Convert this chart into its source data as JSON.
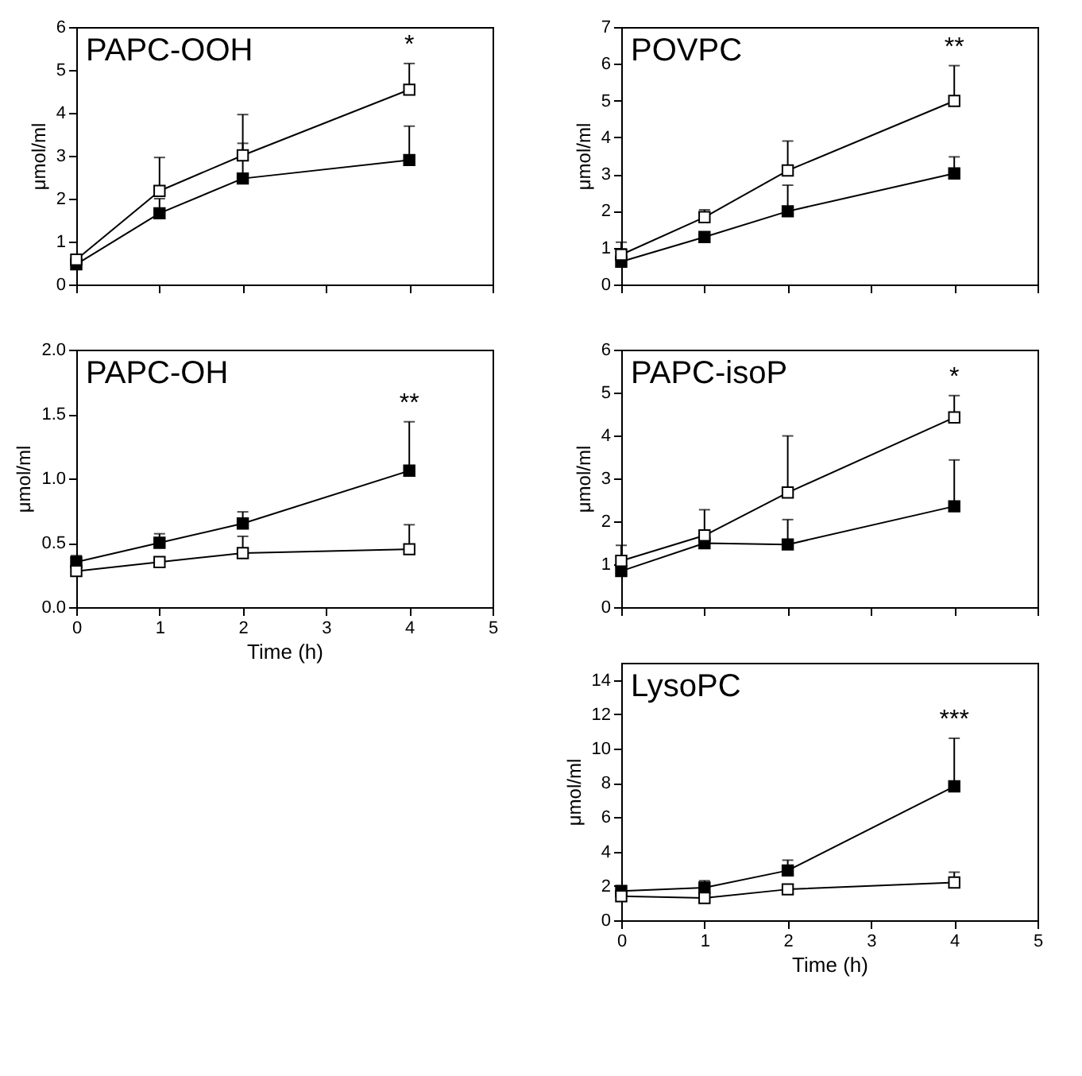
{
  "chart_data": [
    {
      "type": "line",
      "title": "PAPC-OOH",
      "ylabel": "μmol/ml",
      "x": [
        0,
        1,
        2,
        4
      ],
      "xlim": [
        0,
        5
      ],
      "xticks": [
        0,
        1,
        2,
        3,
        4,
        5
      ],
      "ylim": [
        0,
        6
      ],
      "yticks": [
        0,
        1,
        2,
        3,
        4,
        5,
        6
      ],
      "tick_labels": "y",
      "marker": "square",
      "grid": false,
      "series": [
        {
          "color": "#000000",
          "values": [
            0.47,
            1.66,
            2.47,
            2.9
          ],
          "errors": [
            null,
            [
              1.66,
              2.0
            ],
            [
              2.47,
              3.29
            ],
            [
              2.9,
              3.69
            ]
          ]
        },
        {
          "color": "#ffffff",
          "values": [
            0.58,
            2.18,
            3.01,
            4.54
          ],
          "errors": [
            null,
            [
              2.18,
              2.96
            ],
            [
              3.01,
              3.96
            ],
            [
              4.54,
              5.15
            ]
          ]
        }
      ],
      "annotations": [
        "*"
      ]
    },
    {
      "type": "line",
      "title": "PAPC-OH",
      "ylabel": "μmol/ml",
      "xlabel": "Time (h)",
      "x": [
        0,
        1,
        2,
        4
      ],
      "xlim": [
        0,
        5
      ],
      "xticks": [
        0,
        1,
        2,
        3,
        4,
        5
      ],
      "ylim": [
        0,
        2
      ],
      "yticks": [
        {
          "value": 0,
          "label": "0.0"
        },
        0.5,
        {
          "value": 1,
          "label": "1.0"
        },
        1.5,
        {
          "value": 2,
          "label": "2.0"
        }
      ],
      "marker": "square",
      "grid": false,
      "series": [
        {
          "color": "#000000",
          "values": [
            0.35,
            0.5,
            0.65,
            1.06
          ],
          "errors": [
            [
              0.35,
              0.4
            ],
            [
              0.5,
              0.57
            ],
            [
              0.65,
              0.74
            ],
            [
              1.06,
              1.44
            ]
          ]
        },
        {
          "color": "#ffffff",
          "values": [
            0.28,
            0.35,
            0.42,
            0.45
          ],
          "errors": [
            null,
            [
              0.35,
              0.38
            ],
            [
              0.42,
              0.55
            ],
            [
              0.45,
              0.64
            ]
          ]
        }
      ],
      "annotations": [
        "**"
      ]
    },
    {
      "type": "line",
      "title": "POVPC",
      "ylabel": "μmol/ml",
      "x": [
        0,
        1,
        2,
        4
      ],
      "xlim": [
        0,
        5
      ],
      "xticks": [
        0,
        1,
        2,
        3,
        4,
        5
      ],
      "ylim": [
        0,
        7
      ],
      "yticks": [
        0,
        1,
        2,
        3,
        4,
        5,
        6,
        7
      ],
      "tick_labels": "y",
      "marker": "square",
      "grid": false,
      "series": [
        {
          "color": "#000000",
          "values": [
            0.62,
            1.29,
            1.99,
            3.02
          ],
          "errors": [
            [
              0.62,
              0.97
            ],
            null,
            [
              1.99,
              2.7
            ],
            [
              3.02,
              3.47
            ]
          ]
        },
        {
          "color": "#ffffff",
          "values": [
            0.81,
            1.83,
            3.1,
            4.99
          ],
          "errors": [
            [
              0.81,
              1.15
            ],
            [
              1.83,
              2.03
            ],
            [
              3.1,
              3.9
            ],
            [
              4.99,
              5.95
            ]
          ]
        }
      ],
      "annotations": [
        "**"
      ]
    },
    {
      "type": "line",
      "title": "PAPC-isoP",
      "ylabel": "μmol/ml",
      "x": [
        0,
        1,
        2,
        4
      ],
      "xlim": [
        0,
        5
      ],
      "xticks": [
        0,
        1,
        2,
        3,
        4,
        5
      ],
      "ylim": [
        0,
        6
      ],
      "yticks": [
        0,
        1,
        2,
        3,
        4,
        5,
        6
      ],
      "tick_labels": "y",
      "marker": "square",
      "grid": false,
      "series": [
        {
          "color": "#000000",
          "values": [
            0.84,
            1.49,
            1.46,
            2.35
          ],
          "errors": [
            null,
            null,
            [
              1.46,
              2.04
            ],
            [
              2.35,
              3.43
            ]
          ]
        },
        {
          "color": "#ffffff",
          "values": [
            1.08,
            1.67,
            2.67,
            4.42
          ],
          "errors": [
            [
              1.08,
              1.44
            ],
            [
              1.67,
              2.27
            ],
            [
              2.67,
              3.99
            ],
            [
              4.42,
              4.93
            ]
          ]
        }
      ],
      "annotations": [
        "*"
      ]
    },
    {
      "type": "line",
      "title": "LysoPC",
      "ylabel": "μmol/ml",
      "xlabel": "Time (h)",
      "x": [
        0,
        1,
        2,
        4
      ],
      "xlim": [
        0,
        5
      ],
      "xticks": [
        0,
        1,
        2,
        3,
        4,
        5
      ],
      "ylim": [
        0,
        15
      ],
      "yticks": [
        0,
        2,
        4,
        6,
        8,
        10,
        12,
        14
      ],
      "marker": "square",
      "grid": false,
      "series": [
        {
          "color": "#000000",
          "values": [
            1.7,
            1.9,
            2.9,
            7.8
          ],
          "errors": [
            [
              1.7,
              2.0
            ],
            [
              1.9,
              2.3
            ],
            [
              2.9,
              3.5
            ],
            [
              7.8,
              10.6
            ]
          ]
        },
        {
          "color": "#ffffff",
          "values": [
            1.4,
            1.3,
            1.8,
            2.2
          ],
          "errors": [
            [
              1.4,
              1.9
            ],
            null,
            null,
            [
              2.2,
              2.8
            ]
          ]
        }
      ],
      "annotations": [
        "***"
      ]
    }
  ]
}
